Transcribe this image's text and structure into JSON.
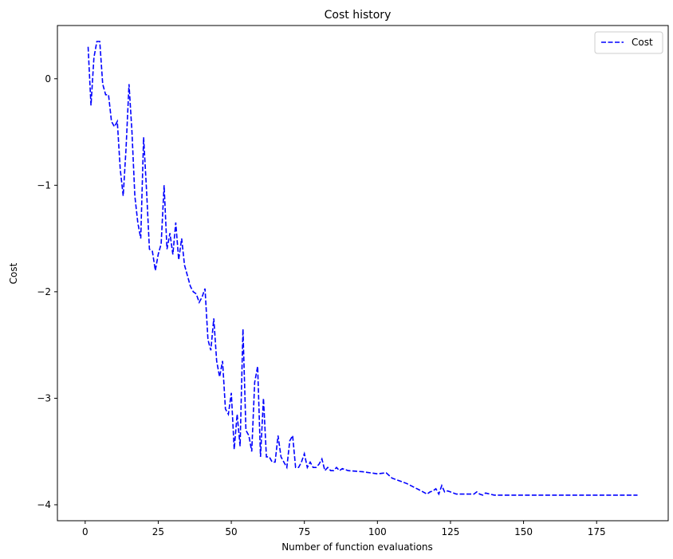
{
  "chart_data": {
    "type": "line",
    "title": "Cost history",
    "xlabel": "Number of function evaluations",
    "ylabel": "Cost",
    "xlim": [
      -9.5,
      199.5
    ],
    "ylim": [
      -4.15,
      0.5
    ],
    "xticks": [
      0,
      25,
      50,
      75,
      100,
      125,
      150,
      175
    ],
    "yticks": [
      0,
      -1,
      -2,
      -3,
      -4
    ],
    "ytick_labels": [
      "0",
      "−1",
      "−2",
      "−3",
      "−4"
    ],
    "grid": false,
    "legend_position": "top-right",
    "series": [
      {
        "name": "Cost",
        "color": "#0000ff",
        "line_style": "dashed",
        "x": [
          1,
          2,
          3,
          4,
          5,
          6,
          7,
          8,
          9,
          10,
          11,
          12,
          13,
          14,
          15,
          16,
          17,
          18,
          19,
          20,
          21,
          22,
          23,
          24,
          25,
          26,
          27,
          28,
          29,
          30,
          31,
          32,
          33,
          34,
          35,
          36,
          37,
          38,
          39,
          40,
          41,
          42,
          43,
          44,
          45,
          46,
          47,
          48,
          49,
          50,
          51,
          52,
          53,
          54,
          55,
          56,
          57,
          58,
          59,
          60,
          61,
          62,
          63,
          64,
          65,
          66,
          67,
          68,
          69,
          70,
          71,
          72,
          73,
          74,
          75,
          76,
          77,
          78,
          79,
          80,
          81,
          82,
          83,
          84,
          85,
          86,
          87,
          88,
          90,
          95,
          100,
          103,
          105,
          110,
          115,
          117,
          118,
          119,
          120,
          121,
          122,
          123,
          124,
          125,
          127,
          130,
          133,
          134,
          135,
          136,
          137,
          140,
          145,
          150,
          160,
          170,
          180,
          189
        ],
        "y": [
          0.3,
          -0.25,
          0.2,
          0.35,
          0.35,
          -0.05,
          -0.15,
          -0.15,
          -0.4,
          -0.45,
          -0.4,
          -0.85,
          -1.1,
          -0.65,
          -0.05,
          -0.5,
          -1.1,
          -1.35,
          -1.5,
          -0.55,
          -1.05,
          -1.6,
          -1.62,
          -1.8,
          -1.65,
          -1.55,
          -1.0,
          -1.6,
          -1.45,
          -1.65,
          -1.35,
          -1.7,
          -1.5,
          -1.75,
          -1.85,
          -1.95,
          -2.0,
          -2.02,
          -2.1,
          -2.05,
          -1.97,
          -2.45,
          -2.55,
          -2.25,
          -2.65,
          -2.8,
          -2.65,
          -3.1,
          -3.15,
          -2.95,
          -3.48,
          -3.15,
          -3.45,
          -2.35,
          -3.3,
          -3.35,
          -3.5,
          -2.85,
          -2.7,
          -3.55,
          -3.0,
          -3.55,
          -3.55,
          -3.6,
          -3.6,
          -3.35,
          -3.55,
          -3.6,
          -3.65,
          -3.4,
          -3.35,
          -3.65,
          -3.65,
          -3.6,
          -3.52,
          -3.65,
          -3.6,
          -3.65,
          -3.65,
          -3.62,
          -3.57,
          -3.68,
          -3.65,
          -3.68,
          -3.68,
          -3.65,
          -3.68,
          -3.66,
          -3.68,
          -3.69,
          -3.71,
          -3.7,
          -3.75,
          -3.8,
          -3.87,
          -3.9,
          -3.88,
          -3.87,
          -3.85,
          -3.9,
          -3.82,
          -3.88,
          -3.87,
          -3.88,
          -3.9,
          -3.9,
          -3.9,
          -3.88,
          -3.9,
          -3.91,
          -3.89,
          -3.91,
          -3.91,
          -3.91,
          -3.91,
          -3.91,
          -3.91,
          -3.91
        ]
      }
    ]
  }
}
